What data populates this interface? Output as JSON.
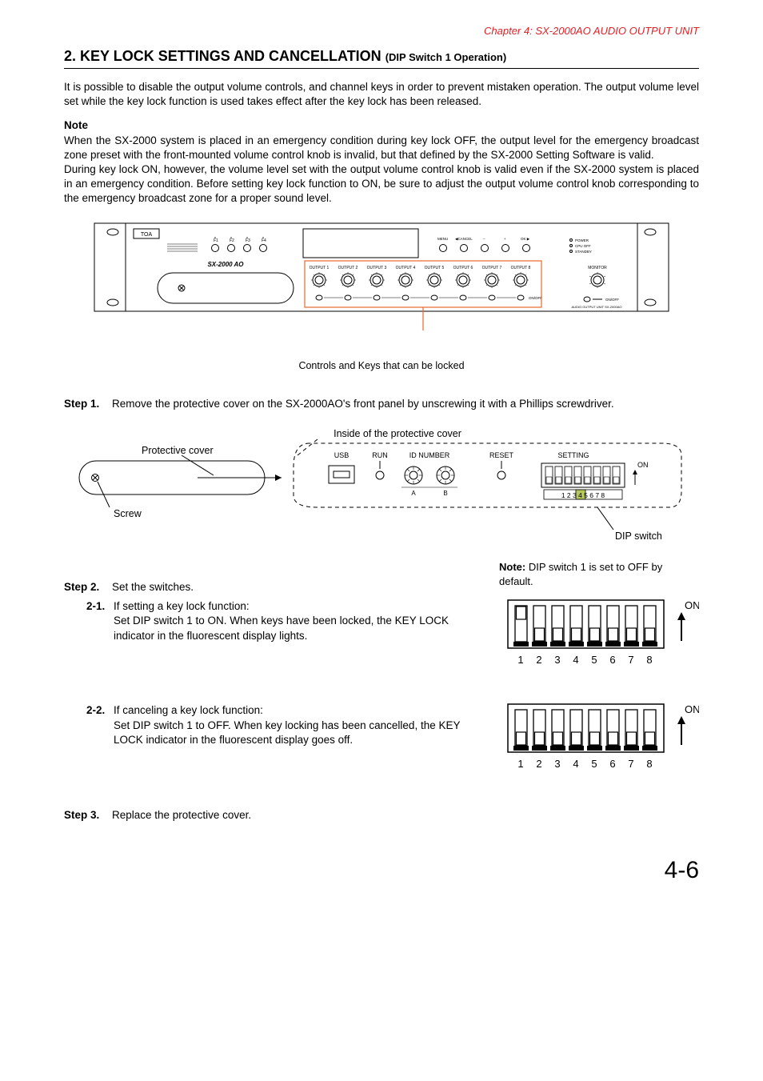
{
  "chapter_link": "Chapter 4:  SX-2000AO AUDIO OUTPUT UNIT",
  "heading_main": "2. KEY LOCK SETTINGS AND CANCELLATION",
  "heading_sub": "(DIP Switch 1 Operation)",
  "intro_para": "It is possible to disable the output volume controls, and channel keys in order to prevent mistaken operation. The output volume level set while the key lock function is used takes effect after the key lock has been released.",
  "note_label": "Note",
  "note_para1": "When the SX-2000 system is placed in an emergency condition during key lock OFF, the output level for the emergency broadcast zone preset with the front-mounted volume control knob is invalid, but that defined by the SX-2000 Setting Software is valid.",
  "note_para2": "During key lock ON, however, the volume level set with the output volume control knob is valid even if the SX-2000 system is placed in an emergency condition. Before setting key lock function to ON, be sure to adjust the output volume control knob corresponding to the emergency broadcast zone for a proper sound level.",
  "front_panel": {
    "brand": "TOA",
    "model": "SX-2000 AO",
    "func_keys": [
      "F1",
      "F2",
      "F3",
      "F4"
    ],
    "nav_labels": [
      "MENU",
      "◀CANCEL",
      "–",
      "+",
      "OK ▶"
    ],
    "status_leds": [
      "POWER",
      "CPU OFF",
      "STANDBY"
    ],
    "outputs": [
      "OUTPUT 1",
      "OUTPUT 2",
      "OUTPUT 3",
      "OUTPUT 4",
      "OUTPUT 5",
      "OUTPUT 6",
      "OUTPUT 7",
      "OUTPUT 8"
    ],
    "monitor_label": "MONITOR",
    "onoff_labels": "ON/OFF",
    "unit_label": "AUDIO OUTPUT UNIT SX-2000AO"
  },
  "caption_panel": "Controls and Keys that can be locked",
  "step1_label": "Step 1.",
  "step1_body": "Remove the protective cover on the SX-2000AO's front panel by unscrewing it with a Phillips screwdriver.",
  "cover_diagram": {
    "title": "Inside of the protective cover",
    "protective_cover_label": "Protective cover",
    "screw_label": "Screw",
    "usb": "USB",
    "run": "RUN",
    "idnumber": "ID NUMBER",
    "ida": "A",
    "idb": "B",
    "reset": "RESET",
    "setting": "SETTING",
    "on": "ON",
    "sw_numbers": "1 2 3 4 5 6 7 8",
    "dip_switch_label": "DIP switch"
  },
  "step2_label": "Step 2.",
  "step2_body": "Set the switches.",
  "step2_note_bold": "Note:",
  "step2_note": "DIP switch 1 is set to OFF by default.",
  "sub21_label": "2-1.",
  "sub21_title": "If setting a key lock function:",
  "sub21_body": "Set DIP switch 1 to ON. When keys have been locked, the KEY LOCK indicator in the fluorescent display lights.",
  "sub22_label": "2-2.",
  "sub22_title": "If canceling a key lock function:",
  "sub22_body": "Set DIP switch 1 to OFF. When key locking has been cancelled, the KEY LOCK indicator in the fluorescent display goes off.",
  "dip_switch": {
    "on_label": "ON",
    "numbers": [
      "1",
      "2",
      "3",
      "4",
      "5",
      "6",
      "7",
      "8"
    ],
    "switch1_on_levers": [
      1,
      0,
      0,
      0,
      0,
      0,
      0,
      0
    ],
    "switch1_off_levers": [
      0,
      0,
      0,
      0,
      0,
      0,
      0,
      0
    ],
    "color_highlight": "#b7c85a"
  },
  "step3_label": "Step 3.",
  "step3_body": "Replace the protective cover.",
  "page_number": "4-6",
  "colors": {
    "red": "#d9252a",
    "callout_red": "#e9662b",
    "line": "#000000"
  }
}
